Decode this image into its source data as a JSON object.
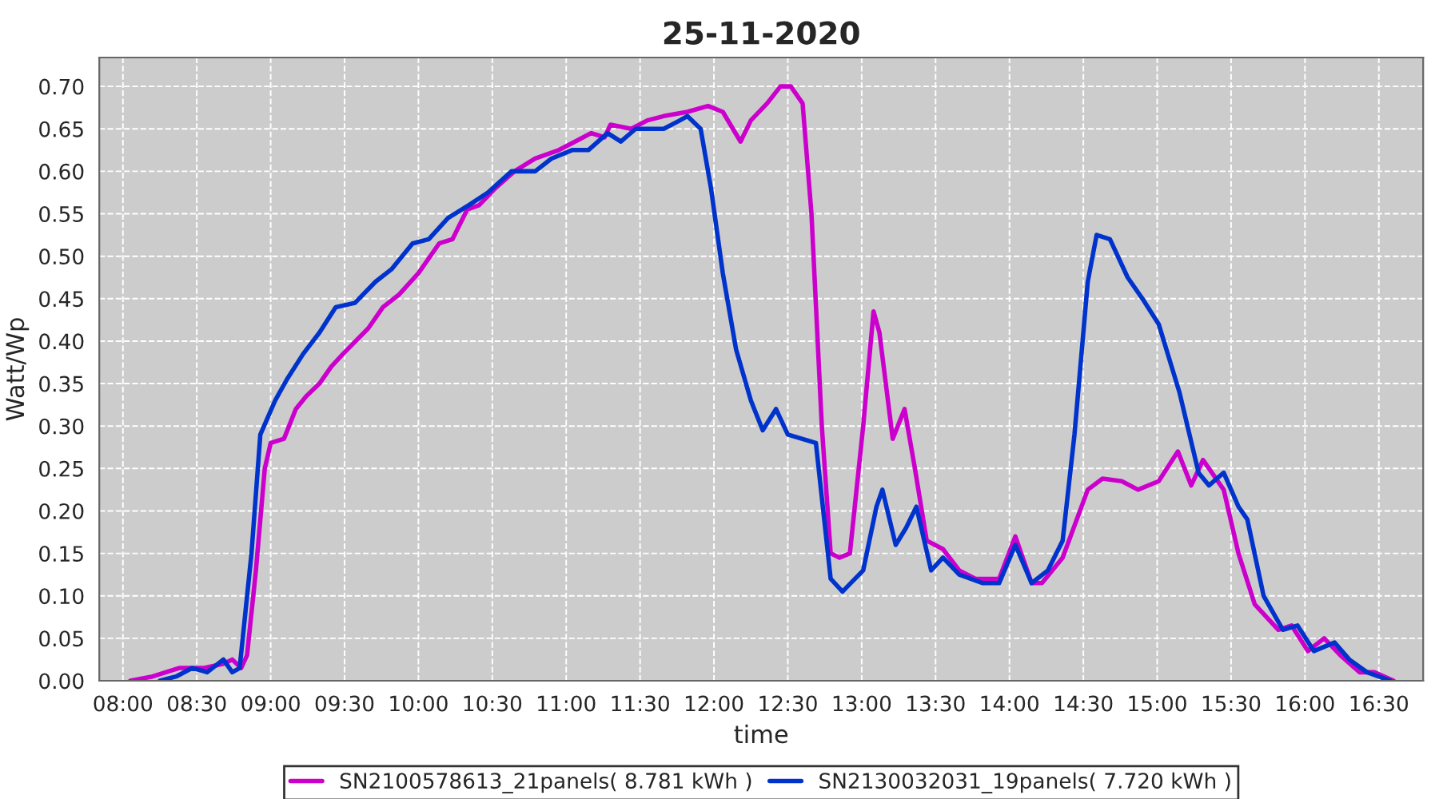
{
  "chart_data": {
    "type": "line",
    "title": "25-11-2020",
    "xlabel": "time",
    "ylabel": "Watt/Wp",
    "xlim": [
      7.84,
      16.8
    ],
    "ylim": [
      0,
      0.734
    ],
    "xticks": [
      {
        "value": 8,
        "label": "08:00"
      },
      {
        "value": 8.5,
        "label": "08:30"
      },
      {
        "value": 9,
        "label": "09:00"
      },
      {
        "value": 9.5,
        "label": "09:30"
      },
      {
        "value": 10,
        "label": "10:00"
      },
      {
        "value": 10.5,
        "label": "10:30"
      },
      {
        "value": 11,
        "label": "11:00"
      },
      {
        "value": 11.5,
        "label": "11:30"
      },
      {
        "value": 12,
        "label": "12:00"
      },
      {
        "value": 12.5,
        "label": "12:30"
      },
      {
        "value": 13,
        "label": "13:00"
      },
      {
        "value": 13.5,
        "label": "13:30"
      },
      {
        "value": 14,
        "label": "14:00"
      },
      {
        "value": 14.5,
        "label": "14:30"
      },
      {
        "value": 15,
        "label": "15:00"
      },
      {
        "value": 15.5,
        "label": "15:30"
      },
      {
        "value": 16,
        "label": "16:00"
      },
      {
        "value": 16.5,
        "label": "16:30"
      }
    ],
    "yticks": [
      {
        "value": 0,
        "label": "0.00"
      },
      {
        "value": 0.05,
        "label": "0.05"
      },
      {
        "value": 0.1,
        "label": "0.10"
      },
      {
        "value": 0.15,
        "label": "0.15"
      },
      {
        "value": 0.2,
        "label": "0.20"
      },
      {
        "value": 0.25,
        "label": "0.25"
      },
      {
        "value": 0.3,
        "label": "0.30"
      },
      {
        "value": 0.35,
        "label": "0.35"
      },
      {
        "value": 0.4,
        "label": "0.40"
      },
      {
        "value": 0.45,
        "label": "0.45"
      },
      {
        "value": 0.5,
        "label": "0.50"
      },
      {
        "value": 0.55,
        "label": "0.55"
      },
      {
        "value": 0.6,
        "label": "0.60"
      },
      {
        "value": 0.65,
        "label": "0.65"
      },
      {
        "value": 0.7,
        "label": "0.70"
      }
    ],
    "grid": true,
    "legend": "bottom",
    "line_style": "solid",
    "series": [
      {
        "name": "SN2100578613_21panels( 8.781 kWh )",
        "color": "#cc00cc",
        "x": [
          8.05,
          8.2,
          8.38,
          8.55,
          8.68,
          8.74,
          8.8,
          8.84,
          8.9,
          8.96,
          9.0,
          9.09,
          9.17,
          9.24,
          9.33,
          9.41,
          9.49,
          9.66,
          9.76,
          9.87,
          10.0,
          10.14,
          10.23,
          10.33,
          10.41,
          10.52,
          10.65,
          10.79,
          10.95,
          11.06,
          11.17,
          11.26,
          11.3,
          11.44,
          11.55,
          11.66,
          11.82,
          11.96,
          12.06,
          12.18,
          12.25,
          12.36,
          12.45,
          12.52,
          12.6,
          12.66,
          12.73,
          12.79,
          12.85,
          12.92,
          13.01,
          13.08,
          13.12,
          13.21,
          13.29,
          13.36,
          13.44,
          13.55,
          13.66,
          13.77,
          13.93,
          14.04,
          14.15,
          14.22,
          14.36,
          14.53,
          14.63,
          14.76,
          14.87,
          15.01,
          15.14,
          15.23,
          15.31,
          15.45,
          15.55,
          15.66,
          15.82,
          15.91,
          16.02,
          16.13,
          16.24,
          16.37,
          16.47,
          16.6
        ],
        "values": [
          0.0,
          0.005,
          0.015,
          0.015,
          0.02,
          0.025,
          0.015,
          0.03,
          0.13,
          0.25,
          0.28,
          0.285,
          0.32,
          0.335,
          0.35,
          0.37,
          0.385,
          0.415,
          0.44,
          0.455,
          0.48,
          0.515,
          0.52,
          0.555,
          0.56,
          0.58,
          0.6,
          0.615,
          0.625,
          0.635,
          0.645,
          0.64,
          0.655,
          0.65,
          0.66,
          0.665,
          0.67,
          0.677,
          0.67,
          0.635,
          0.66,
          0.68,
          0.7,
          0.7,
          0.68,
          0.55,
          0.3,
          0.15,
          0.145,
          0.15,
          0.3,
          0.435,
          0.41,
          0.285,
          0.32,
          0.25,
          0.165,
          0.155,
          0.13,
          0.12,
          0.12,
          0.17,
          0.115,
          0.115,
          0.145,
          0.225,
          0.238,
          0.235,
          0.225,
          0.235,
          0.27,
          0.23,
          0.26,
          0.225,
          0.15,
          0.09,
          0.06,
          0.065,
          0.035,
          0.05,
          0.03,
          0.01,
          0.01,
          0.0
        ]
      },
      {
        "name": "SN2130032031_19panels( 7.720 kWh )",
        "color": "#0033cc",
        "x": [
          8.25,
          8.36,
          8.47,
          8.57,
          8.68,
          8.74,
          8.79,
          8.87,
          8.93,
          9.03,
          9.11,
          9.22,
          9.33,
          9.44,
          9.57,
          9.71,
          9.82,
          9.96,
          10.07,
          10.2,
          10.34,
          10.47,
          10.63,
          10.79,
          10.9,
          11.04,
          11.15,
          11.28,
          11.37,
          11.47,
          11.66,
          11.77,
          11.82,
          11.91,
          11.98,
          12.06,
          12.15,
          12.25,
          12.33,
          12.42,
          12.5,
          12.69,
          12.74,
          12.79,
          12.87,
          13.01,
          13.1,
          13.14,
          13.23,
          13.3,
          13.37,
          13.47,
          13.55,
          13.66,
          13.82,
          13.93,
          14.04,
          14.15,
          14.26,
          14.36,
          14.44,
          14.53,
          14.59,
          14.68,
          14.8,
          14.9,
          15.01,
          15.15,
          15.28,
          15.35,
          15.45,
          15.55,
          15.61,
          15.72,
          15.85,
          15.95,
          16.06,
          16.2,
          16.3,
          16.42,
          16.58
        ],
        "values": [
          0.0,
          0.005,
          0.015,
          0.01,
          0.025,
          0.01,
          0.015,
          0.15,
          0.29,
          0.33,
          0.355,
          0.385,
          0.41,
          0.44,
          0.445,
          0.47,
          0.485,
          0.515,
          0.52,
          0.545,
          0.56,
          0.575,
          0.6,
          0.6,
          0.615,
          0.625,
          0.625,
          0.645,
          0.635,
          0.65,
          0.65,
          0.66,
          0.665,
          0.65,
          0.58,
          0.48,
          0.39,
          0.33,
          0.295,
          0.32,
          0.29,
          0.28,
          0.2,
          0.12,
          0.105,
          0.13,
          0.205,
          0.225,
          0.16,
          0.18,
          0.205,
          0.13,
          0.145,
          0.125,
          0.115,
          0.115,
          0.16,
          0.115,
          0.13,
          0.165,
          0.29,
          0.47,
          0.525,
          0.52,
          0.475,
          0.45,
          0.42,
          0.34,
          0.245,
          0.23,
          0.245,
          0.205,
          0.19,
          0.1,
          0.06,
          0.065,
          0.035,
          0.045,
          0.025,
          0.01,
          0.0
        ]
      }
    ]
  }
}
